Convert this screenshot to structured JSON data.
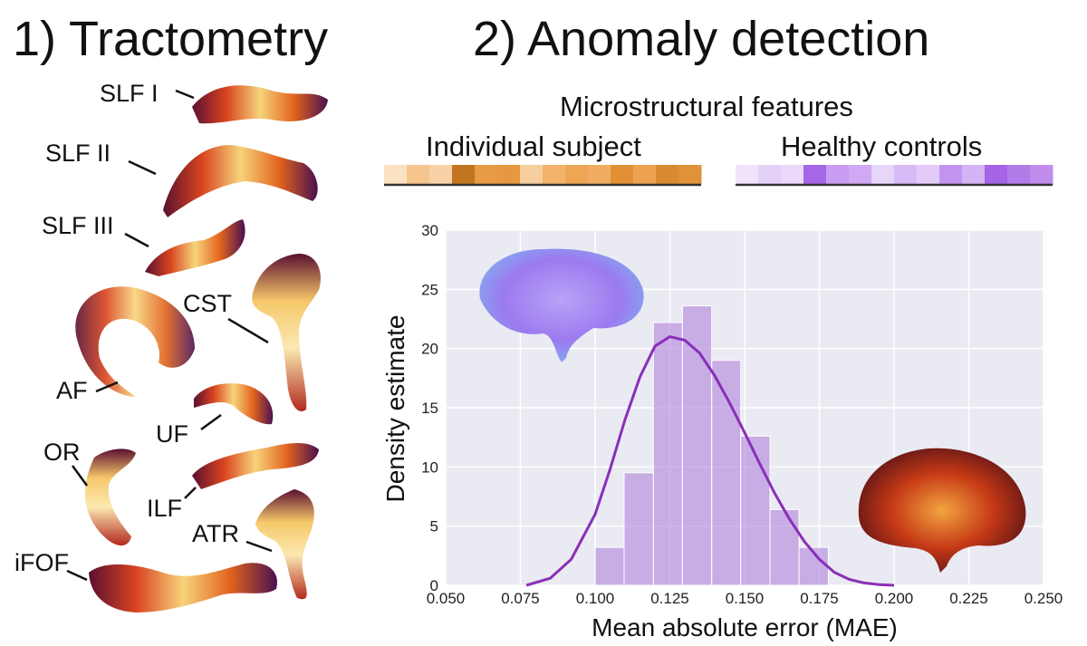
{
  "headings": {
    "left": "1) Tractometry",
    "right": "2) Anomaly detection"
  },
  "tracts": [
    {
      "id": "slf1",
      "label": "SLF I"
    },
    {
      "id": "slf2",
      "label": "SLF II"
    },
    {
      "id": "slf3",
      "label": "SLF III"
    },
    {
      "id": "cst",
      "label": "CST"
    },
    {
      "id": "af",
      "label": "AF"
    },
    {
      "id": "uf",
      "label": "UF"
    },
    {
      "id": "or",
      "label": "OR"
    },
    {
      "id": "ilf",
      "label": "ILF"
    },
    {
      "id": "atr",
      "label": "ATR"
    },
    {
      "id": "ifof",
      "label": "iFOF"
    }
  ],
  "features": {
    "title": "Microstructural features",
    "individual_label": "Individual subject",
    "healthy_label": "Healthy controls",
    "individual_cells": [
      "#fbe2c3",
      "#f6c58e",
      "#f8d2a6",
      "#c27520",
      "#e89a44",
      "#e6973f",
      "#f7cf9f",
      "#f3b36a",
      "#eea654",
      "#f0ad61",
      "#e38f36",
      "#eda250",
      "#d98a30",
      "#e0923a"
    ],
    "healthy_cells": [
      "#efe4fb",
      "#e3d1f8",
      "#ead9fa",
      "#a567e6",
      "#c79cf1",
      "#cfa9f3",
      "#e6d6fa",
      "#d8baf6",
      "#e2cbf8",
      "#c294ef",
      "#d4b4f4",
      "#a564e5",
      "#b27be9",
      "#c08ded"
    ]
  },
  "annotation": "?",
  "colors": {
    "bars": "#b386dc",
    "kde": "#8a2fb8",
    "plot_bg": "#eaeaf2",
    "grid": "#ffffff"
  },
  "chart_data": {
    "type": "bar",
    "xlabel": "Mean absolute error (MAE)",
    "ylabel": "Density estimate",
    "xlim": [
      0.05,
      0.25
    ],
    "ylim": [
      0,
      30
    ],
    "xticks": [
      "0.050",
      "0.075",
      "0.100",
      "0.125",
      "0.150",
      "0.175",
      "0.200",
      "0.225",
      "0.250"
    ],
    "yticks": [
      "0",
      "5",
      "10",
      "15",
      "20",
      "25",
      "30"
    ],
    "grid": true,
    "series": [
      {
        "type": "histogram",
        "bin_edges": [
          0.1,
          0.1097,
          0.1195,
          0.1292,
          0.139,
          0.1487,
          0.1585,
          0.1682,
          0.178
        ],
        "values": [
          3.2,
          9.5,
          22.2,
          23.6,
          19.0,
          12.6,
          6.4,
          3.2
        ]
      },
      {
        "type": "line",
        "x": [
          0.077,
          0.085,
          0.092,
          0.1,
          0.105,
          0.11,
          0.115,
          0.12,
          0.125,
          0.13,
          0.135,
          0.14,
          0.145,
          0.15,
          0.155,
          0.16,
          0.165,
          0.17,
          0.175,
          0.18,
          0.185,
          0.19,
          0.195,
          0.2
        ],
        "y": [
          0.0,
          0.6,
          2.2,
          6.0,
          9.8,
          14.0,
          17.6,
          20.2,
          21.0,
          20.7,
          19.6,
          17.7,
          15.4,
          12.9,
          10.3,
          7.8,
          5.6,
          3.7,
          2.2,
          1.1,
          0.5,
          0.2,
          0.05,
          0.0
        ]
      }
    ]
  }
}
